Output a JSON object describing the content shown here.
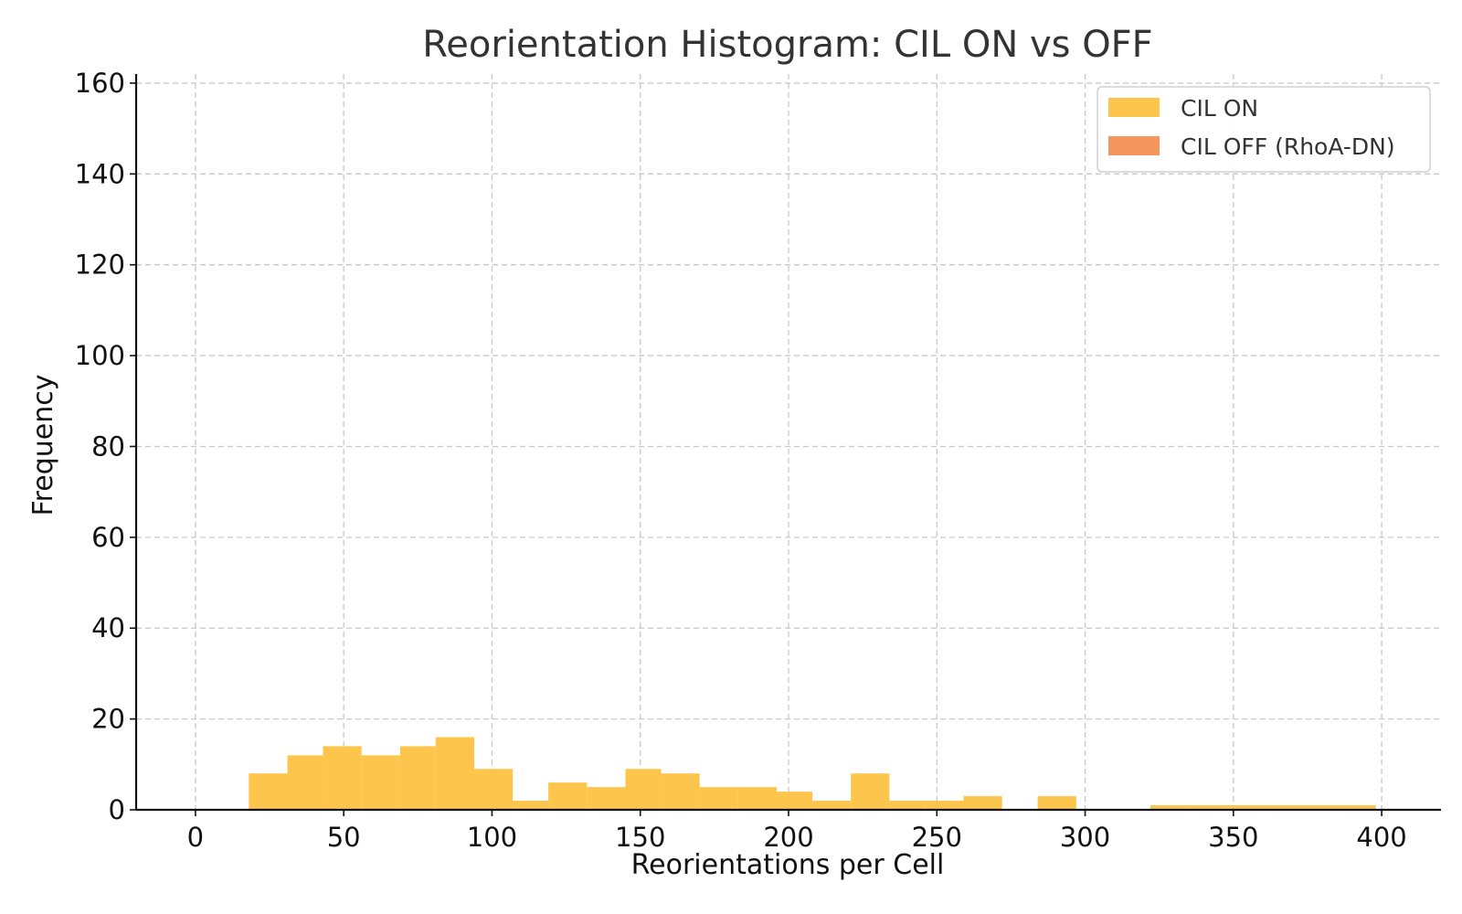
{
  "chart_data": {
    "type": "bar",
    "title": "Reorientation Histogram: CIL ON vs OFF",
    "xlabel": "Reorientations per Cell",
    "ylabel": "Frequency",
    "xlim": [
      -20,
      420
    ],
    "ylim": [
      0,
      162
    ],
    "xticks": [
      0,
      50,
      100,
      150,
      200,
      250,
      300,
      350,
      400
    ],
    "yticks": [
      0,
      20,
      40,
      60,
      80,
      100,
      120,
      140,
      160
    ],
    "grid": true,
    "legend_position": "top-right",
    "series": [
      {
        "name": "CIL ON",
        "color": "#fdc54b",
        "bins": [
          {
            "x0": 18,
            "x1": 31,
            "value": 8
          },
          {
            "x0": 31,
            "x1": 43,
            "value": 12
          },
          {
            "x0": 43,
            "x1": 56,
            "value": 14
          },
          {
            "x0": 56,
            "x1": 69,
            "value": 12
          },
          {
            "x0": 69,
            "x1": 81,
            "value": 14
          },
          {
            "x0": 81,
            "x1": 94,
            "value": 16
          },
          {
            "x0": 94,
            "x1": 107,
            "value": 9
          },
          {
            "x0": 107,
            "x1": 119,
            "value": 2
          },
          {
            "x0": 119,
            "x1": 132,
            "value": 6
          },
          {
            "x0": 132,
            "x1": 145,
            "value": 5
          },
          {
            "x0": 145,
            "x1": 157,
            "value": 9
          },
          {
            "x0": 157,
            "x1": 170,
            "value": 8
          },
          {
            "x0": 170,
            "x1": 183,
            "value": 5
          },
          {
            "x0": 183,
            "x1": 196,
            "value": 5
          },
          {
            "x0": 196,
            "x1": 208,
            "value": 4
          },
          {
            "x0": 208,
            "x1": 221,
            "value": 2
          },
          {
            "x0": 221,
            "x1": 234,
            "value": 8
          },
          {
            "x0": 234,
            "x1": 246,
            "value": 2
          },
          {
            "x0": 246,
            "x1": 259,
            "value": 2
          },
          {
            "x0": 259,
            "x1": 272,
            "value": 3
          },
          {
            "x0": 272,
            "x1": 284,
            "value": 0
          },
          {
            "x0": 284,
            "x1": 297,
            "value": 3
          },
          {
            "x0": 297,
            "x1": 310,
            "value": 0
          },
          {
            "x0": 310,
            "x1": 322,
            "value": 0
          },
          {
            "x0": 322,
            "x1": 335,
            "value": 1
          },
          {
            "x0": 335,
            "x1": 348,
            "value": 1
          },
          {
            "x0": 348,
            "x1": 360,
            "value": 1
          },
          {
            "x0": 360,
            "x1": 373,
            "value": 1
          },
          {
            "x0": 373,
            "x1": 386,
            "value": 1
          },
          {
            "x0": 386,
            "x1": 398,
            "value": 1
          }
        ]
      },
      {
        "name": "CIL OFF (RhoA-DN)",
        "color": "#f4955e",
        "bins": []
      }
    ]
  }
}
